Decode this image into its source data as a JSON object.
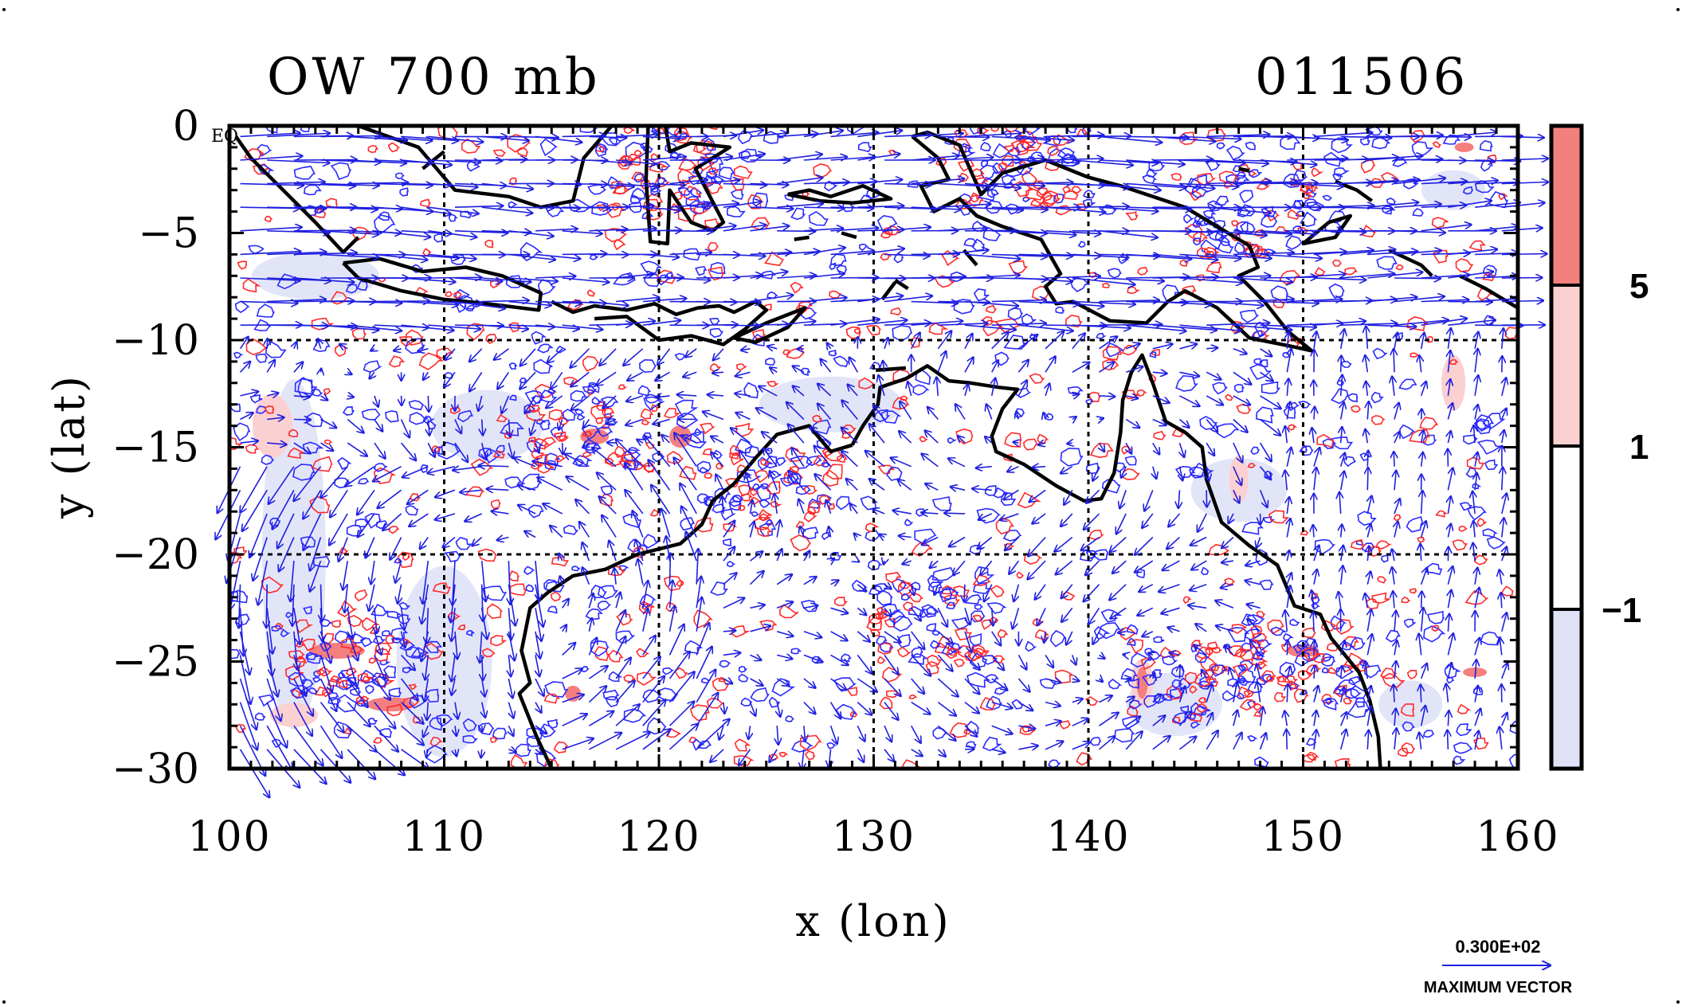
{
  "title_left": "OW 700 mb",
  "title_right": "011506",
  "corner_label": "EQ",
  "colors": {
    "vector": "#1f1fe0",
    "positive_contour": "#ff2a2a",
    "negative_contour": "#2a2aff",
    "fill_high": "#f47f7f",
    "fill_mid": "#fbd0d0",
    "fill_neutral": "#ffffff",
    "fill_low": "#dfe2f7",
    "coast": "#000000"
  },
  "chart_data": {
    "type": "map",
    "xlabel": "x (lon)",
    "ylabel": "y (lat)",
    "xlim": [
      100,
      160
    ],
    "ylim": [
      -30,
      0
    ],
    "x_ticks": [
      "100",
      "110",
      "120",
      "130",
      "140",
      "150",
      "160"
    ],
    "y_ticks": [
      "0",
      "−5",
      "−10",
      "−15",
      "−20",
      "−25",
      "−30"
    ],
    "x_tick_values": [
      100,
      110,
      120,
      130,
      140,
      150,
      160
    ],
    "y_tick_values": [
      0,
      -5,
      -10,
      -15,
      -20,
      -25,
      -30
    ],
    "gridlines_lon": [
      110,
      120,
      130,
      140,
      150
    ],
    "gridlines_lat": [
      -10,
      -20
    ],
    "colorbar": {
      "levels": [
        "5",
        "1",
        "−1"
      ],
      "bands": [
        "> 5",
        "1 to 5",
        "−1 to 1",
        "< −1"
      ]
    },
    "reference_vector": {
      "value": "0.300E+02",
      "label": "MAXIMUM VECTOR"
    }
  }
}
